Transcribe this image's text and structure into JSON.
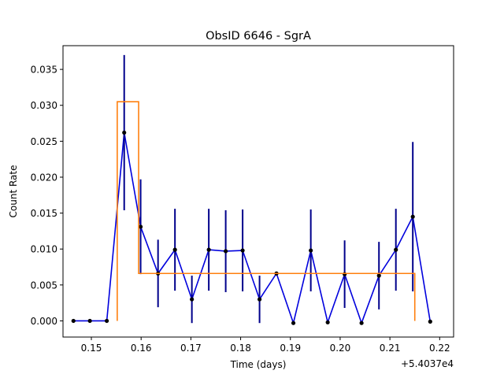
{
  "chart_data": {
    "type": "line",
    "title": "ObsID 6646 - SgrA",
    "xlabel": "Time (days)",
    "ylabel": "Count Rate",
    "x_offset_label": "+5.4037e4",
    "xlim": [
      0.1443,
      0.2228
    ],
    "ylim": [
      -0.00225,
      0.0383
    ],
    "x_ticks": [
      {
        "value": 0.15,
        "label": "0.15"
      },
      {
        "value": 0.16,
        "label": "0.16"
      },
      {
        "value": 0.17,
        "label": "0.17"
      },
      {
        "value": 0.18,
        "label": "0.18"
      },
      {
        "value": 0.19,
        "label": "0.19"
      },
      {
        "value": 0.2,
        "label": "0.20"
      },
      {
        "value": 0.21,
        "label": "0.21"
      },
      {
        "value": 0.22,
        "label": "0.22"
      }
    ],
    "y_ticks": [
      {
        "value": 0.0,
        "label": "0.000"
      },
      {
        "value": 0.005,
        "label": "0.005"
      },
      {
        "value": 0.01,
        "label": "0.010"
      },
      {
        "value": 0.015,
        "label": "0.015"
      },
      {
        "value": 0.02,
        "label": "0.020"
      },
      {
        "value": 0.025,
        "label": "0.025"
      },
      {
        "value": 0.03,
        "label": "0.030"
      },
      {
        "value": 0.035,
        "label": "0.035"
      }
    ],
    "colors": {
      "light_curve": "#0000dd",
      "error_bars": "#00008b",
      "points": "#000000",
      "blocks": "#ff7f0e"
    },
    "series": [
      {
        "kind": "light_curve",
        "points": [
          {
            "x": 0.1464,
            "y": 0.0,
            "err": 0.0
          },
          {
            "x": 0.1497,
            "y": 0.0,
            "err": 0.0
          },
          {
            "x": 0.1531,
            "y": 0.0,
            "err": 0.0
          },
          {
            "x": 0.1566,
            "y": 0.0262,
            "err": 0.0108
          },
          {
            "x": 0.1599,
            "y": 0.0131,
            "err": 0.0066
          },
          {
            "x": 0.1634,
            "y": 0.0066,
            "err": 0.0047
          },
          {
            "x": 0.1668,
            "y": 0.0099,
            "err": 0.0057
          },
          {
            "x": 0.1702,
            "y": 0.003,
            "err": 0.0033
          },
          {
            "x": 0.1736,
            "y": 0.0099,
            "err": 0.0057
          },
          {
            "x": 0.177,
            "y": 0.0097,
            "err": 0.0057
          },
          {
            "x": 0.1804,
            "y": 0.0098,
            "err": 0.0057
          },
          {
            "x": 0.1838,
            "y": 0.003,
            "err": 0.0033
          },
          {
            "x": 0.1872,
            "y": 0.0066,
            "err": 0.0
          },
          {
            "x": 0.1906,
            "y": -0.0003,
            "err": 0.0
          },
          {
            "x": 0.1941,
            "y": 0.0098,
            "err": 0.0057
          },
          {
            "x": 0.1975,
            "y": -0.0002,
            "err": 0.0
          },
          {
            "x": 0.2009,
            "y": 0.0065,
            "err": 0.0047
          },
          {
            "x": 0.2043,
            "y": -0.0003,
            "err": 0.0
          },
          {
            "x": 0.2078,
            "y": 0.0063,
            "err": 0.0047
          },
          {
            "x": 0.2112,
            "y": 0.0099,
            "err": 0.0057
          },
          {
            "x": 0.2146,
            "y": 0.0145,
            "err": 0.0104
          },
          {
            "x": 0.2181,
            "y": -0.0001,
            "err": 0.0
          }
        ]
      },
      {
        "kind": "blocks",
        "steps": [
          {
            "x": 0.1552,
            "y": 0.0
          },
          {
            "x": 0.1552,
            "y": 0.0305
          },
          {
            "x": 0.1595,
            "y": 0.0305
          },
          {
            "x": 0.1595,
            "y": 0.0066
          },
          {
            "x": 0.215,
            "y": 0.0066
          },
          {
            "x": 0.215,
            "y": 0.0
          }
        ]
      }
    ]
  }
}
